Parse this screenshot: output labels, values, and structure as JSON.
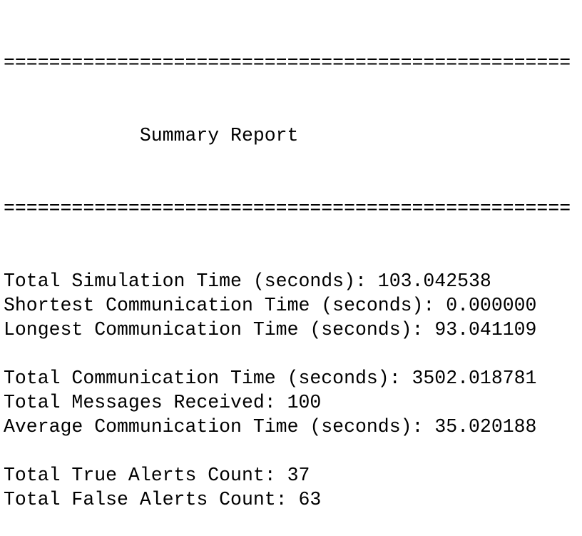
{
  "report": {
    "separator": "==================================================",
    "title": "Summary Report",
    "sections": [
      [
        {
          "label": "Total Simulation Time (seconds):",
          "value": "103.042538"
        },
        {
          "label": "Shortest Communication Time (seconds):",
          "value": "0.000000"
        },
        {
          "label": "Longest Communication Time (seconds):",
          "value": "93.041109"
        }
      ],
      [
        {
          "label": "Total Communication Time (seconds):",
          "value": "3502.018781"
        },
        {
          "label": "Total Messages Received:",
          "value": "100"
        },
        {
          "label": "Average Communication Time (seconds):",
          "value": "35.020188"
        }
      ],
      [
        {
          "label": "Total True Alerts Count:",
          "value": "37"
        },
        {
          "label": "Total False Alerts Count:",
          "value": "63"
        }
      ]
    ]
  }
}
